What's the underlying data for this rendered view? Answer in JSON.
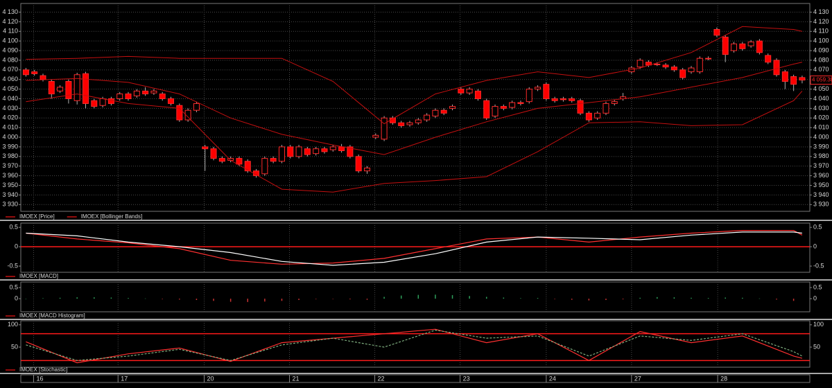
{
  "chart_data": [
    {
      "type": "candlestick",
      "ylim": [
        3923,
        4139
      ],
      "xlim": [
        -0.6,
        91.9
      ],
      "yticks": [
        {
          "value": 4130,
          "label": "4 130"
        },
        {
          "value": 4120,
          "label": "4 120"
        },
        {
          "value": 4110,
          "label": "4 110"
        },
        {
          "value": 4100,
          "label": "4 100"
        },
        {
          "value": 4090,
          "label": "4 090"
        },
        {
          "value": 4080,
          "label": "4 080"
        },
        {
          "value": 4070,
          "label": "4 070"
        },
        {
          "value": 4060,
          "label": "4 060"
        },
        {
          "value": 4050,
          "label": "4 050"
        },
        {
          "value": 4040,
          "label": "4 040"
        },
        {
          "value": 4030,
          "label": "4 030"
        },
        {
          "value": 4020,
          "label": "4 020"
        },
        {
          "value": 4010,
          "label": "4 010"
        },
        {
          "value": 4000,
          "label": "4 000"
        },
        {
          "value": 3990,
          "label": "3 990"
        },
        {
          "value": 3980,
          "label": "3 980"
        },
        {
          "value": 3970,
          "label": "3 970"
        },
        {
          "value": 3960,
          "label": "3 960"
        },
        {
          "value": 3950,
          "label": "3 950"
        },
        {
          "value": 3940,
          "label": "3 940"
        },
        {
          "value": 3930,
          "label": "3 930"
        }
      ],
      "grid": true,
      "last_price": {
        "value": 4059.38,
        "label": "4 059.38"
      },
      "series": [
        {
          "name": "IMOEX [Price]",
          "up_color": "#000000",
          "down_color": "#ff0000",
          "outline_color": "#ff2a2a",
          "wick_color": "#b0b0b0",
          "open": [
            4070,
            4068,
            4064,
            4058,
            4048,
            4058,
            4038,
            4066,
            4038,
            4033,
            4040,
            4040,
            4045,
            4043,
            4048,
            4046,
            4045,
            4040,
            4033,
            4018,
            4028,
            3990,
            3988,
            3978,
            3976,
            3978,
            3975,
            3965,
            3962,
            3978,
            3975,
            3990,
            3980,
            3988,
            3983,
            3988,
            3987,
            3990,
            3990,
            3980,
            3965,
            4000,
            3998,
            4020,
            4015,
            4013,
            4015,
            4018,
            4022,
            4028,
            4030,
            4050,
            4046,
            4048,
            4038,
            4022,
            4032,
            4031,
            4036,
            4037,
            4050,
            4055,
            4040,
            4040,
            4040,
            4038,
            4025,
            4020,
            4025,
            4035,
            4040,
            4068,
            4073,
            4078,
            4076,
            4075,
            4073,
            4070,
            4068,
            4068,
            4082,
            4112,
            4104,
            4090,
            4097,
            4095,
            4100,
            4085,
            4080,
            4068,
            4063,
            4062
          ],
          "high": [
            4072,
            4070,
            4066,
            4060,
            4054,
            4060,
            4067,
            4068,
            4040,
            4042,
            4042,
            4047,
            4047,
            4050,
            4052,
            4050,
            4047,
            4042,
            4035,
            4030,
            4037,
            3992,
            3990,
            3980,
            3980,
            3980,
            3977,
            3967,
            3980,
            3980,
            3992,
            3992,
            3992,
            3990,
            3990,
            3990,
            3992,
            3993,
            3992,
            3982,
            3970,
            4004,
            4022,
            4022,
            4017,
            4017,
            4020,
            4025,
            4030,
            4030,
            4034,
            4052,
            4052,
            4050,
            4040,
            4034,
            4034,
            4038,
            4038,
            4052,
            4054,
            4057,
            4042,
            4042,
            4042,
            4040,
            4027,
            4027,
            4037,
            4039,
            4046,
            4074,
            4082,
            4080,
            4078,
            4077,
            4075,
            4072,
            4074,
            4084,
            4084,
            4114,
            4106,
            4099,
            4099,
            4101,
            4102,
            4087,
            4082,
            4070,
            4065,
            4064
          ],
          "low": [
            4063,
            4064,
            4058,
            4040,
            4046,
            4035,
            4034,
            4030,
            4030,
            4031,
            4033,
            4038,
            4038,
            4041,
            4043,
            4044,
            4038,
            4033,
            4016,
            4016,
            4026,
            3965,
            3976,
            3973,
            3974,
            3970,
            3963,
            3958,
            3960,
            3973,
            3973,
            3978,
            3978,
            3980,
            3981,
            3983,
            3985,
            3984,
            3978,
            3963,
            3962,
            3998,
            3996,
            4013,
            4010,
            4011,
            4013,
            4016,
            4020,
            4023,
            4028,
            4044,
            4044,
            4038,
            4018,
            4020,
            4028,
            4029,
            4033,
            4035,
            4048,
            4038,
            4036,
            4037,
            4036,
            4023,
            4016,
            4018,
            4023,
            4033,
            4038,
            4066,
            4071,
            4073,
            4074,
            4071,
            4068,
            4060,
            4066,
            4066,
            4080,
            4104,
            4078,
            4088,
            4090,
            4093,
            4086,
            4076,
            4063,
            4050,
            4048,
            4056
          ],
          "close": [
            4065,
            4066,
            4060,
            4045,
            4052,
            4040,
            4065,
            4035,
            4032,
            4040,
            4035,
            4045,
            4040,
            4048,
            4045,
            4048,
            4040,
            4035,
            4018,
            4028,
            4035,
            3988,
            3978,
            3975,
            3978,
            3972,
            3965,
            3960,
            3978,
            3975,
            3990,
            3980,
            3990,
            3982,
            3988,
            3985,
            3990,
            3986,
            3980,
            3965,
            3968,
            4002,
            4020,
            4015,
            4012,
            4015,
            4018,
            4023,
            4028,
            4025,
            4032,
            4046,
            4050,
            4040,
            4020,
            4032,
            4030,
            4036,
            4035,
            4050,
            4052,
            4040,
            4038,
            4039,
            4038,
            4025,
            4018,
            4025,
            4035,
            4037,
            4042,
            4072,
            4080,
            4075,
            4076,
            4073,
            4070,
            4062,
            4072,
            4082,
            4082,
            4106,
            4086,
            4097,
            4092,
            4099,
            4088,
            4078,
            4065,
            4058,
            4055,
            4059.38
          ]
        },
        {
          "name": "IMOEX [Bollinger Bands]",
          "color": "#c41010",
          "x": [
            0,
            6,
            12,
            18,
            24,
            30,
            36,
            42,
            48,
            54,
            60,
            66,
            72,
            78,
            84,
            90,
            91
          ],
          "upper": [
            4081,
            4082,
            4084,
            4082,
            4082,
            4082,
            4058,
            4014,
            4045,
            4059,
            4068,
            4062,
            4072,
            4088,
            4115,
            4112,
            4110
          ],
          "middle": [
            4059,
            4061,
            4057,
            4045,
            4020,
            4003,
            3992,
            3982,
            4000,
            4016,
            4030,
            4036,
            4042,
            4052,
            4062,
            4076,
            4078
          ],
          "lower": [
            4037,
            4045,
            4035,
            4030,
            3976,
            3946,
            3943,
            3952,
            3955,
            3959,
            3985,
            4015,
            4016,
            4012,
            4013,
            4038,
            4048
          ]
        }
      ]
    },
    {
      "type": "line",
      "ylim": [
        -0.66,
        0.61
      ],
      "xlim": [
        -0.6,
        91.9
      ],
      "yticks": [
        0.5,
        0,
        -0.5
      ],
      "levels": [
        0
      ],
      "level_color": "#ff1a1a",
      "x": [
        0,
        6,
        12,
        18,
        24,
        30,
        36,
        42,
        48,
        54,
        60,
        66,
        72,
        78,
        84,
        90,
        91
      ],
      "series": [
        {
          "name": "IMOEX [MACD]",
          "color": "#ff3030",
          "values": [
            0.35,
            0.2,
            0.1,
            -0.05,
            -0.35,
            -0.45,
            -0.42,
            -0.3,
            -0.05,
            0.2,
            0.25,
            0.12,
            0.25,
            0.35,
            0.42,
            0.42,
            0.3
          ]
        },
        {
          "color": "#ffffff",
          "values": [
            0.35,
            0.28,
            0.12,
            0.0,
            -0.15,
            -0.38,
            -0.48,
            -0.4,
            -0.18,
            0.12,
            0.25,
            0.22,
            0.18,
            0.3,
            0.38,
            0.38,
            0.35
          ]
        }
      ]
    },
    {
      "type": "bar",
      "ylim": [
        -0.59,
        0.75
      ],
      "xlim": [
        -0.6,
        91.9
      ],
      "yticks": [
        0.5,
        0
      ],
      "x": [
        0,
        2,
        4,
        6,
        8,
        10,
        12,
        14,
        16,
        18,
        20,
        22,
        24,
        26,
        28,
        30,
        32,
        34,
        36,
        38,
        40,
        42,
        44,
        46,
        48,
        50,
        52,
        54,
        56,
        58,
        60,
        62,
        64,
        66,
        68,
        70,
        72,
        74,
        76,
        78,
        80,
        82,
        84,
        86,
        88,
        90
      ],
      "series": [
        {
          "name": "IMOEX [MACD Histogram]",
          "positive_color": "#2e9e5a",
          "negative_color": "#c83232",
          "values": [
            0.0,
            0.02,
            0.04,
            0.06,
            0.06,
            0.05,
            0.03,
            0.01,
            -0.02,
            -0.04,
            -0.06,
            -0.1,
            -0.14,
            -0.15,
            -0.13,
            -0.1,
            -0.06,
            -0.02,
            -0.01,
            -0.03,
            -0.05,
            0.08,
            0.14,
            0.17,
            0.18,
            0.16,
            0.12,
            0.08,
            0.05,
            0.02,
            0.03,
            -0.02,
            -0.05,
            -0.08,
            -0.06,
            -0.03,
            0.04,
            0.07,
            0.06,
            0.04,
            0.03,
            0.05,
            0.04,
            0.01,
            -0.04,
            -0.1
          ]
        }
      ]
    },
    {
      "type": "line",
      "ylim": [
        5,
        109
      ],
      "xlim": [
        -0.6,
        91.9
      ],
      "yticks": [
        100,
        50
      ],
      "levels": [
        80,
        20
      ],
      "level_color": "#ff1a1a",
      "xticks": [
        {
          "value": 0.9,
          "label": "16"
        },
        {
          "value": 10.8,
          "label": "17"
        },
        {
          "value": 20.9,
          "label": "20"
        },
        {
          "value": 30.9,
          "label": "21"
        },
        {
          "value": 40.9,
          "label": "22"
        },
        {
          "value": 50.9,
          "label": "23"
        },
        {
          "value": 61,
          "label": "24"
        },
        {
          "value": 71,
          "label": "27"
        },
        {
          "value": 81.1,
          "label": "28"
        }
      ],
      "x": [
        0,
        6,
        12,
        18,
        24,
        30,
        36,
        42,
        48,
        54,
        60,
        66,
        72,
        78,
        84,
        90,
        91
      ],
      "series": [
        {
          "name": "IMOEX [Stochastic]",
          "color": "#ff3030",
          "values": [
            62,
            15,
            35,
            48,
            18,
            60,
            70,
            80,
            90,
            60,
            80,
            20,
            85,
            60,
            75,
            30,
            25
          ]
        },
        {
          "color": "#7fae7f",
          "dash": true,
          "values": [
            55,
            20,
            30,
            45,
            20,
            55,
            70,
            50,
            88,
            70,
            75,
            30,
            75,
            65,
            80,
            40,
            30
          ]
        }
      ]
    }
  ]
}
